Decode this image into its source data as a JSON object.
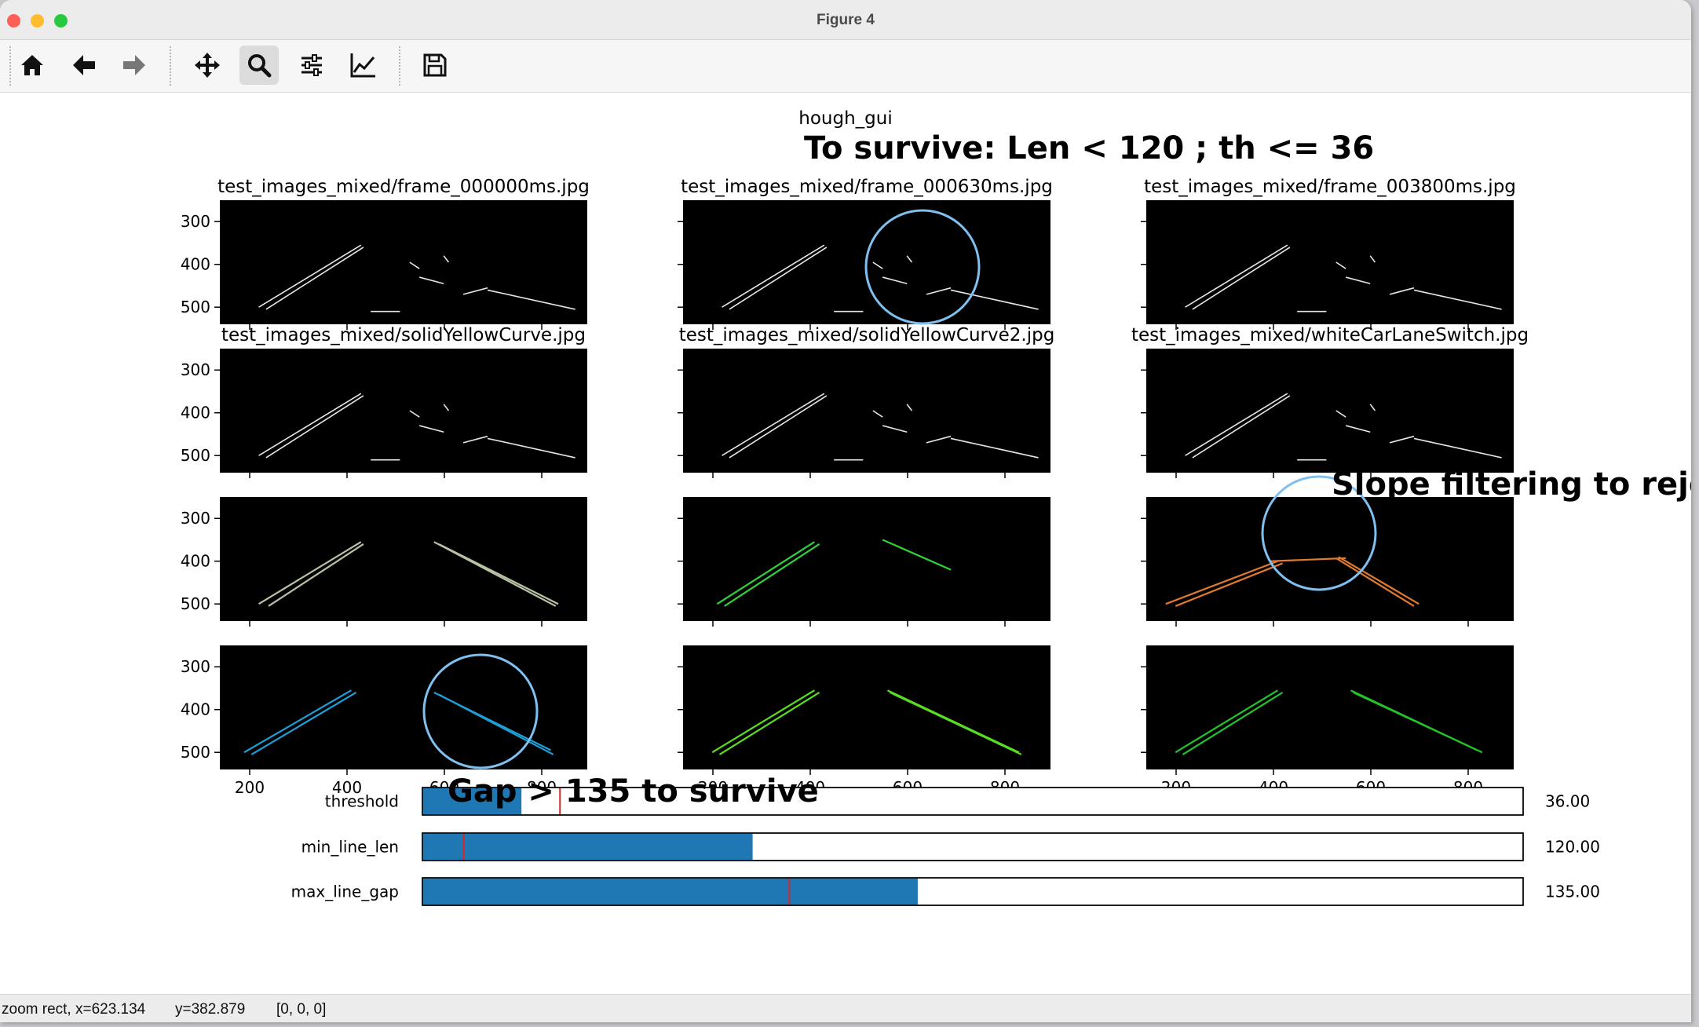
{
  "window": {
    "title": "Figure 4",
    "buttons": [
      "close",
      "minimize",
      "zoom"
    ]
  },
  "toolbar": {
    "buttons": [
      {
        "icon": "home-icon",
        "name": "home-button"
      },
      {
        "icon": "arrow-left-icon",
        "name": "back-button"
      },
      {
        "icon": "arrow-right-icon",
        "name": "forward-button"
      },
      {
        "icon": "move-arrows-icon",
        "name": "pan-button"
      },
      {
        "icon": "magnifier-icon",
        "name": "zoom-button",
        "active": true
      },
      {
        "icon": "sliders-icon",
        "name": "configure-subplots-button"
      },
      {
        "icon": "line-chart-icon",
        "name": "edit-axis-button"
      },
      {
        "icon": "floppy-disk-icon",
        "name": "save-button"
      }
    ]
  },
  "figure": {
    "suptitle": "hough_gui",
    "annotation_top": "To survive: Len < 120 ; th <= 36",
    "annotation_right": "Slope filtering to reject",
    "annotation_gap": "Gap > 135 to survive",
    "yticks": [
      "300",
      "400",
      "500"
    ],
    "xticks": [
      "200",
      "400",
      "600",
      "800"
    ],
    "row_titles": [
      [
        "test_images_mixed/frame_000000ms.jpg",
        "test_images_mixed/frame_000630ms.jpg",
        "test_images_mixed/frame_003800ms.jpg"
      ],
      [
        "test_images_mixed/solidYellowCurve.jpg",
        "test_images_mixed/solidYellowCurve2.jpg",
        "test_images_mixed/whiteCarLaneSwitch.jpg"
      ]
    ],
    "line_colors": {
      "edges": "#e6e6e6",
      "olive": "#b8c2a4",
      "green_bright": "#2fd23a",
      "orange": "#e07a2e",
      "blue": "#1f9fd8",
      "lime": "#59dd21",
      "green_mid": "#22c42a",
      "highlight_circle": "#7fc0f0"
    }
  },
  "sliders": [
    {
      "label": "threshold",
      "value": 36,
      "value_text": "36.00",
      "min": 0,
      "max": 400,
      "init": 50
    },
    {
      "label": "min_line_len",
      "value": 120,
      "value_text": "120.00",
      "min": 0,
      "max": 400,
      "init": 15
    },
    {
      "label": "max_line_gap",
      "value": 135,
      "value_text": "135.00",
      "min": 0,
      "max": 300,
      "init": 100
    }
  ],
  "slider_colors": {
    "fill": "#1f77b4",
    "marker": "#d62728"
  },
  "status": {
    "mode": "zoom rect, x=623.134",
    "y": "y=382.879",
    "pixel": "[0, 0, 0]"
  }
}
